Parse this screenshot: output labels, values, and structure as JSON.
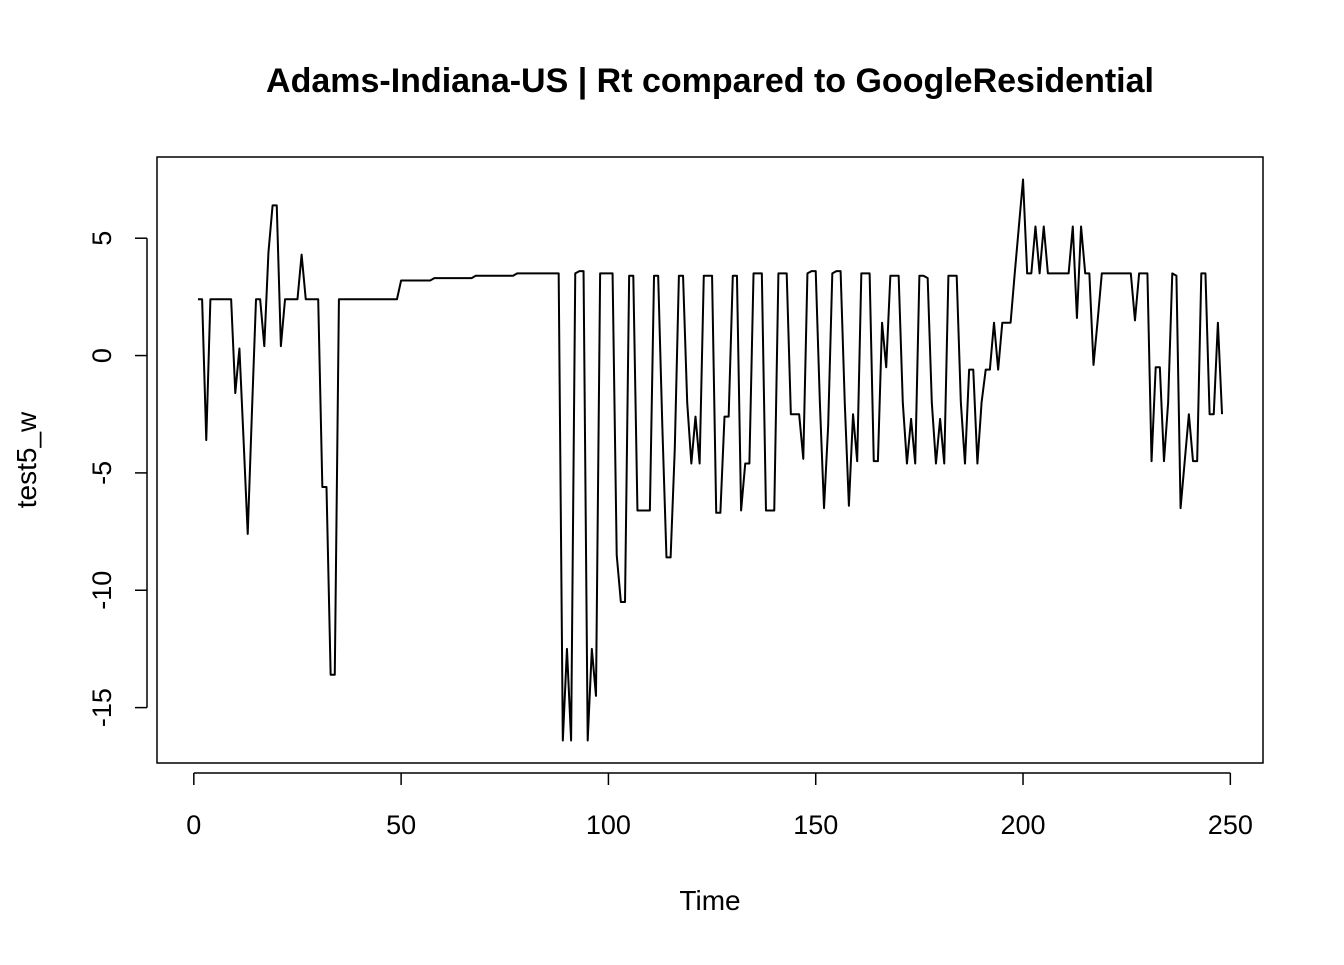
{
  "chart_data": {
    "type": "line",
    "title": "Adams-Indiana-US | Rt compared to GoogleResidential",
    "xlabel": "Time",
    "ylabel": "test5_w",
    "color": "#000000",
    "x": [
      1,
      2,
      3,
      4,
      5,
      6,
      7,
      8,
      9,
      10,
      11,
      12,
      13,
      14,
      15,
      16,
      17,
      18,
      19,
      20,
      21,
      22,
      23,
      24,
      25,
      26,
      27,
      28,
      29,
      30,
      31,
      32,
      33,
      34,
      35,
      36,
      37,
      38,
      39,
      40,
      41,
      42,
      43,
      44,
      45,
      46,
      47,
      48,
      49,
      50,
      51,
      52,
      53,
      54,
      55,
      56,
      57,
      58,
      59,
      60,
      61,
      62,
      63,
      64,
      65,
      66,
      67,
      68,
      69,
      70,
      71,
      72,
      73,
      74,
      75,
      76,
      77,
      78,
      79,
      80,
      81,
      82,
      83,
      84,
      85,
      86,
      87,
      88,
      89,
      90,
      91,
      92,
      93,
      94,
      95,
      96,
      97,
      98,
      99,
      100,
      101,
      102,
      103,
      104,
      105,
      106,
      107,
      108,
      109,
      110,
      111,
      112,
      113,
      114,
      115,
      116,
      117,
      118,
      119,
      120,
      121,
      122,
      123,
      124,
      125,
      126,
      127,
      128,
      129,
      130,
      131,
      132,
      133,
      134,
      135,
      136,
      137,
      138,
      139,
      140,
      141,
      142,
      143,
      144,
      145,
      146,
      147,
      148,
      149,
      150,
      151,
      152,
      153,
      154,
      155,
      156,
      157,
      158,
      159,
      160,
      161,
      162,
      163,
      164,
      165,
      166,
      167,
      168,
      169,
      170,
      171,
      172,
      173,
      174,
      175,
      176,
      177,
      178,
      179,
      180,
      181,
      182,
      183,
      184,
      185,
      186,
      187,
      188,
      189,
      190,
      191,
      192,
      193,
      194,
      195,
      196,
      197,
      198,
      199,
      200,
      201,
      202,
      203,
      204,
      205,
      206,
      207,
      208,
      209,
      210,
      211,
      212,
      213,
      214,
      215,
      216,
      217,
      218,
      219,
      220,
      221,
      222,
      223,
      224,
      225,
      226,
      227,
      228,
      229,
      230,
      231,
      232,
      233,
      234,
      235,
      236,
      237,
      238,
      239,
      240,
      241,
      242,
      243,
      244,
      245,
      246,
      247,
      248
    ],
    "values": [
      2.4,
      2.4,
      -3.6,
      2.4,
      2.4,
      2.4,
      2.4,
      2.4,
      2.4,
      -1.6,
      0.3,
      -3.6,
      -7.6,
      -2.5,
      2.4,
      2.4,
      0.4,
      4.4,
      6.4,
      6.4,
      0.4,
      2.4,
      2.4,
      2.4,
      2.4,
      4.3,
      2.4,
      2.4,
      2.4,
      2.4,
      -5.6,
      -5.6,
      -13.6,
      -13.6,
      2.4,
      2.4,
      2.4,
      2.4,
      2.4,
      2.4,
      2.4,
      2.4,
      2.4,
      2.4,
      2.4,
      2.4,
      2.4,
      2.4,
      2.4,
      3.2,
      3.2,
      3.2,
      3.2,
      3.2,
      3.2,
      3.2,
      3.2,
      3.3,
      3.3,
      3.3,
      3.3,
      3.3,
      3.3,
      3.3,
      3.3,
      3.3,
      3.3,
      3.4,
      3.4,
      3.4,
      3.4,
      3.4,
      3.4,
      3.4,
      3.4,
      3.4,
      3.4,
      3.5,
      3.5,
      3.5,
      3.5,
      3.5,
      3.5,
      3.5,
      3.5,
      3.5,
      3.5,
      3.5,
      -16.4,
      -12.5,
      -16.4,
      3.5,
      3.6,
      3.6,
      -16.4,
      -12.5,
      -14.5,
      3.5,
      3.5,
      3.5,
      3.5,
      -8.5,
      -10.5,
      -10.5,
      3.4,
      3.4,
      -6.6,
      -6.6,
      -6.6,
      -6.6,
      3.4,
      3.4,
      -3,
      -8.6,
      -8.6,
      -4,
      3.4,
      3.4,
      -2,
      -4.6,
      -2.6,
      -4.6,
      3.4,
      3.4,
      3.4,
      -6.7,
      -6.7,
      -2.6,
      -2.6,
      3.4,
      3.4,
      -6.6,
      -4.6,
      -4.6,
      3.5,
      3.5,
      3.5,
      -6.6,
      -6.6,
      -6.6,
      3.5,
      3.5,
      3.5,
      -2.5,
      -2.5,
      -2.5,
      -4.4,
      3.5,
      3.6,
      3.6,
      -2,
      -6.5,
      -3,
      3.5,
      3.6,
      3.6,
      -2,
      -6.4,
      -2.5,
      -4.5,
      3.5,
      3.5,
      3.5,
      -4.5,
      -4.5,
      1.4,
      -0.5,
      3.4,
      3.4,
      3.4,
      -2,
      -4.6,
      -2.7,
      -4.6,
      3.4,
      3.4,
      3.3,
      -2,
      -4.6,
      -2.7,
      -4.6,
      3.4,
      3.4,
      3.4,
      -2,
      -4.6,
      -0.6,
      -0.6,
      -4.6,
      -2,
      -0.6,
      -0.6,
      1.4,
      -0.6,
      1.4,
      1.4,
      1.4,
      3.5,
      5.5,
      7.5,
      3.5,
      3.5,
      5.5,
      3.5,
      5.5,
      3.5,
      3.5,
      3.5,
      3.5,
      3.5,
      3.5,
      5.5,
      1.6,
      5.5,
      3.5,
      3.5,
      -0.4,
      1.5,
      3.5,
      3.5,
      3.5,
      3.5,
      3.5,
      3.5,
      3.5,
      3.5,
      1.5,
      3.5,
      3.5,
      3.5,
      -4.5,
      -0.5,
      -0.5,
      -4.5,
      -2,
      3.5,
      3.4,
      -6.5,
      -4.5,
      -2.5,
      -4.5,
      -4.5,
      3.5,
      3.5,
      -2.5,
      -2.5,
      1.4,
      -2.5
    ],
    "xlim": [
      -8.88,
      257.88
    ],
    "xticks": [
      0,
      50,
      100,
      150,
      200,
      250
    ],
    "ylim": [
      -17.36,
      8.46
    ],
    "yticks": [
      -15,
      -10,
      -5,
      0,
      5
    ]
  }
}
